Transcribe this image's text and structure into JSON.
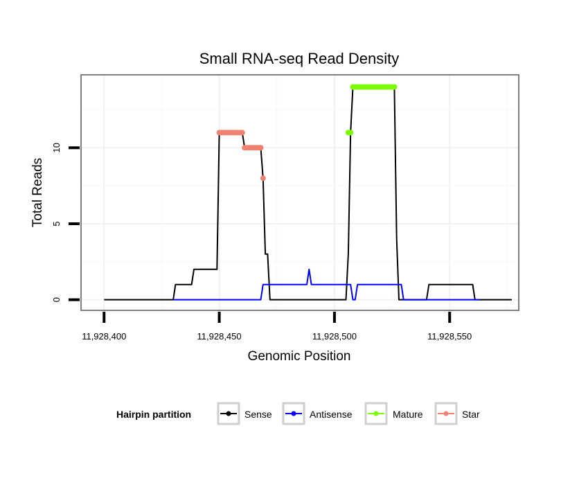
{
  "chart_data": {
    "type": "line",
    "title": "Small RNA-seq Read Density",
    "xlabel": "Genomic Position",
    "ylabel": "Total Reads",
    "xlim": [
      11928390,
      11928580
    ],
    "ylim": [
      -0.7,
      14.8
    ],
    "x_ticks": [
      11928400,
      11928450,
      11928500,
      11928550
    ],
    "x_tick_labels": [
      "11,928,400",
      "11,928,450",
      "11,928,500",
      "11,928,550"
    ],
    "y_ticks": [
      0,
      5,
      10
    ],
    "y_tick_labels": [
      "0",
      "5",
      "10"
    ],
    "legend": {
      "title": "Hairpin partition",
      "position": "bottom",
      "entries": [
        {
          "name": "Sense",
          "color": "#000000"
        },
        {
          "name": "Antisense",
          "color": "#0000ff"
        },
        {
          "name": "Mature",
          "color": "#7cfc00"
        },
        {
          "name": "Star",
          "color": "#f08070"
        }
      ]
    },
    "series": [
      {
        "name": "Sense",
        "color": "#000000",
        "kind": "line",
        "x": [
          11928400,
          11928430,
          11928431,
          11928438,
          11928439,
          11928449,
          11928450,
          11928460,
          11928461,
          11928468,
          11928469,
          11928470,
          11928471,
          11928472,
          11928473,
          11928474,
          11928505,
          11928506,
          11928507,
          11928508,
          11928526,
          11928527,
          11928528,
          11928529,
          11928540,
          11928541,
          11928560,
          11928561,
          11928577
        ],
        "y": [
          0,
          0,
          1,
          1,
          2,
          2,
          11,
          11,
          10,
          10,
          8,
          3,
          3,
          0,
          0,
          0,
          0,
          3,
          11,
          14,
          14,
          4,
          0,
          0,
          0,
          1,
          1,
          0,
          0
        ]
      },
      {
        "name": "Antisense",
        "color": "#0000ff",
        "kind": "line",
        "x": [
          11928430,
          11928468,
          11928469,
          11928488,
          11928489,
          11928490,
          11928507,
          11928508,
          11928509,
          11928510,
          11928529,
          11928530,
          11928563
        ],
        "y": [
          0,
          0,
          1,
          1,
          2,
          1,
          1,
          0,
          0,
          1,
          1,
          0,
          0
        ]
      },
      {
        "name": "Mature",
        "color": "#7cfc00",
        "kind": "points",
        "x": [
          11928506,
          11928507,
          11928508,
          11928509,
          11928510,
          11928511,
          11928512,
          11928513,
          11928514,
          11928515,
          11928516,
          11928517,
          11928518,
          11928519,
          11928520,
          11928521,
          11928522,
          11928523,
          11928524,
          11928525,
          11928526
        ],
        "y": [
          11,
          11,
          14,
          14,
          14,
          14,
          14,
          14,
          14,
          14,
          14,
          14,
          14,
          14,
          14,
          14,
          14,
          14,
          14,
          14,
          14
        ]
      },
      {
        "name": "Star",
        "color": "#f08070",
        "kind": "points",
        "x": [
          11928450,
          11928451,
          11928452,
          11928453,
          11928454,
          11928455,
          11928456,
          11928457,
          11928458,
          11928459,
          11928460,
          11928461,
          11928462,
          11928463,
          11928464,
          11928465,
          11928466,
          11928467,
          11928468,
          11928469
        ],
        "y": [
          11,
          11,
          11,
          11,
          11,
          11,
          11,
          11,
          11,
          11,
          11,
          10,
          10,
          10,
          10,
          10,
          10,
          10,
          10,
          8
        ]
      }
    ]
  }
}
